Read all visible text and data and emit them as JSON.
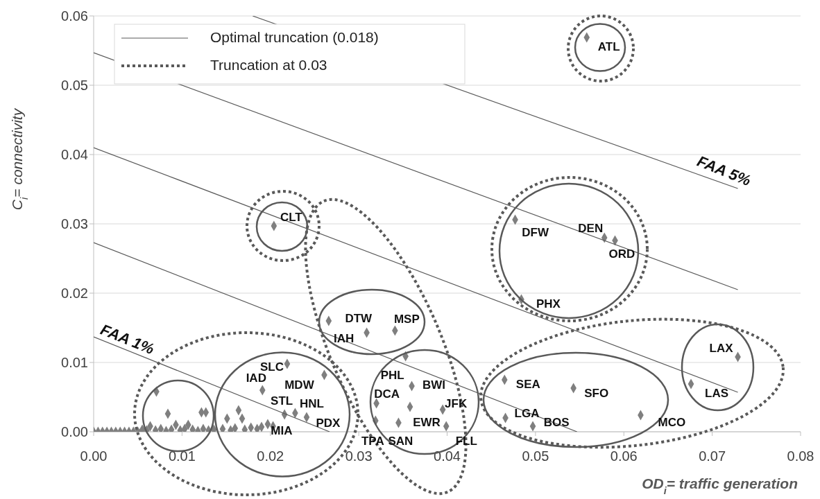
{
  "chart_data": {
    "type": "scatter",
    "xlabel": "OD$_{i}$= traffic generation",
    "ylabel": "C$_{i}$= connectivity",
    "xlim": [
      0,
      0.08
    ],
    "ylim": [
      0,
      0.06
    ],
    "xticks": [
      {
        "value": 0,
        "label": "0.00"
      },
      {
        "value": 0.01,
        "label": "0.01"
      },
      {
        "value": 0.02,
        "label": "0.02"
      },
      {
        "value": 0.03,
        "label": "0.03"
      },
      {
        "value": 0.04,
        "label": "0.04"
      },
      {
        "value": 0.05,
        "label": "0.05"
      },
      {
        "value": 0.06,
        "label": "0.06"
      },
      {
        "value": 0.07,
        "label": "0.07"
      },
      {
        "value": 0.08,
        "label": "0.08"
      }
    ],
    "yticks": [
      {
        "value": 0,
        "label": "0.00"
      },
      {
        "value": 0.01,
        "label": "0.01"
      },
      {
        "value": 0.02,
        "label": "0.02"
      },
      {
        "value": 0.03,
        "label": "0.03"
      },
      {
        "value": 0.04,
        "label": "0.04"
      },
      {
        "value": 0.05,
        "label": "0.05"
      },
      {
        "value": 0.06,
        "label": "0.06"
      }
    ],
    "grid": "y",
    "marker": "diamond",
    "series": [
      {
        "color": "#7f7f7f",
        "x": [
          0.0558,
          0.0204,
          0.0477,
          0.0578,
          0.059,
          0.0484,
          0.0266,
          0.0309,
          0.0341,
          0.0353,
          0.0261,
          0.0219,
          0.0191,
          0.0216,
          0.0228,
          0.0241,
          0.0197,
          0.0164,
          0.0168,
          0.0151,
          0.0071,
          0.0084,
          0.0122,
          0.0127,
          0.036,
          0.0358,
          0.0395,
          0.0399,
          0.0465,
          0.0543,
          0.0466,
          0.0497,
          0.0619,
          0.0676,
          0.0729,
          0.032,
          0.0319,
          0.0345,
          0,
          0.0005,
          0.001,
          0.0015,
          0.002,
          0.0025,
          0.003,
          0.0035,
          0.004,
          0.0045,
          0.005,
          0.0055,
          0.006,
          0.0064,
          0.007,
          0.0076,
          0.0082,
          0.0088,
          0.0093,
          0.0098,
          0.0103,
          0.0107,
          0.0112,
          0.0118,
          0.0124,
          0.013,
          0.0136,
          0.0146,
          0.0155,
          0.016,
          0.0171,
          0.0178,
          0.0185,
          0.019,
          0.0203
        ],
        "values": [
          0.0569,
          0.0297,
          0.0306,
          0.028,
          0.0276,
          0.0191,
          0.016,
          0.0143,
          0.0146,
          0.0109,
          0.0082,
          0.0098,
          0.006,
          0.0025,
          0.0027,
          0.0021,
          0.0011,
          0.0031,
          0.0019,
          0.0019,
          0.0058,
          0.0026,
          0.0028,
          0.0028,
          0.0066,
          0.0036,
          0.0032,
          0.0008,
          0.0075,
          0.0063,
          0.002,
          0.0008,
          0.0024,
          0.0069,
          0.0108,
          0.0041,
          0.0016,
          0.0013,
          0,
          0,
          0,
          0,
          0,
          0,
          0,
          0,
          0,
          0,
          0,
          0.0003,
          0.0002,
          0.0008,
          0.0002,
          0.0004,
          0.0001,
          0.0003,
          0.001,
          0.0002,
          0.0004,
          0.001,
          0.0003,
          0.0001,
          0.0004,
          0.0002,
          0.0003,
          0.0004,
          0.0002,
          0.0005,
          0.0003,
          0.0006,
          0.0004,
          0.0007,
          0.0008
        ]
      },
      {
        "type": "line",
        "marker": "none",
        "color": "#595959",
        "x": [
          0,
          0.0267
        ],
        "values": [
          0.0137,
          0
        ]
      },
      {
        "type": "line",
        "marker": "none",
        "color": "#595959",
        "x": [
          0,
          0.0547
        ],
        "values": [
          0.0273,
          0
        ]
      },
      {
        "type": "line",
        "marker": "none",
        "color": "#595959",
        "x": [
          0,
          0.0729
        ],
        "values": [
          0.041,
          0.0057
        ]
      },
      {
        "type": "line",
        "marker": "none",
        "color": "#595959",
        "x": [
          0,
          0.0729
        ],
        "values": [
          0.0547,
          0.0205
        ]
      },
      {
        "type": "line",
        "marker": "none",
        "color": "#595959",
        "x": [
          0.018,
          0.0729
        ],
        "values": [
          0.06,
          0.0351
        ]
      }
    ],
    "annotations": [
      "FAA 1%",
      "FAA 5%",
      "Optimal truncation (0.018)",
      "Truncation at 0.03",
      {
        "text": "ATL",
        "x": 0.0558,
        "y": 0.0569
      },
      {
        "text": "CLT",
        "x": 0.0204,
        "y": 0.0297
      },
      {
        "text": "DFW",
        "x": 0.0477,
        "y": 0.0306
      },
      {
        "text": "DEN",
        "x": 0.0578,
        "y": 0.028
      },
      {
        "text": "ORD",
        "x": 0.059,
        "y": 0.0276
      },
      {
        "text": "PHX",
        "x": 0.0484,
        "y": 0.0191
      },
      {
        "text": "DTW",
        "x": 0.0266,
        "y": 0.016
      },
      {
        "text": "IAH",
        "x": 0.0309,
        "y": 0.0143
      },
      {
        "text": "MSP",
        "x": 0.0341,
        "y": 0.0146
      },
      {
        "text": "SLC",
        "x": 0.0219,
        "y": 0.0098
      },
      {
        "text": "IAD",
        "x": 0.0191,
        "y": 0.006
      },
      {
        "text": "MDW",
        "x": 0.0261,
        "y": 0.0082
      },
      {
        "text": "STL",
        "x": 0.0216,
        "y": 0.0025
      },
      {
        "text": "HNL",
        "x": 0.0228,
        "y": 0.0027
      },
      {
        "text": "PDX",
        "x": 0.0241,
        "y": 0.0021
      },
      {
        "text": "MIA",
        "x": 0.0197,
        "y": 0.0011
      },
      {
        "text": "TPA",
        "x": 0.0319,
        "y": 0.0016
      },
      {
        "text": "SAN",
        "x": 0.0345,
        "y": 0.0013
      },
      {
        "text": "FLL",
        "x": 0.0399,
        "y": 0.0008
      },
      {
        "text": "PHL",
        "x": 0.0353,
        "y": 0.0109
      },
      {
        "text": "DCA",
        "x": 0.032,
        "y": 0.0041
      },
      {
        "text": "BWI",
        "x": 0.036,
        "y": 0.0066
      },
      {
        "text": "JFK",
        "x": 0.0395,
        "y": 0.0032
      },
      {
        "text": "EWR",
        "x": 0.0358,
        "y": 0.0036
      },
      {
        "text": "SEA",
        "x": 0.0465,
        "y": 0.0075
      },
      {
        "text": "SFO",
        "x": 0.0543,
        "y": 0.0063
      },
      {
        "text": "LGA",
        "x": 0.0466,
        "y": 0.002
      },
      {
        "text": "BOS",
        "x": 0.0497,
        "y": 0.0008
      },
      {
        "text": "MCO",
        "x": 0.0619,
        "y": 0.0024
      },
      {
        "text": "LAX",
        "x": 0.0729,
        "y": 0.0108
      },
      {
        "text": "LAS",
        "x": 0.0676,
        "y": 0.0069
      }
    ]
  }
}
